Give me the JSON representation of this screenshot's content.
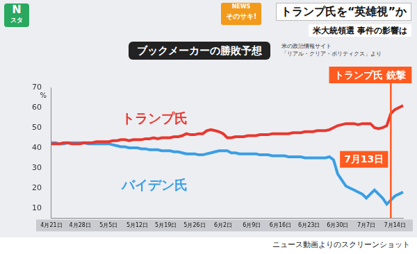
{
  "header": {
    "logo": [
      "N",
      "スタ"
    ],
    "program": [
      "NEWS",
      "そのサキ!"
    ],
    "headline": "トランプ氏を“英雄視”か",
    "subheadline": "米大統領選 事件の影響は"
  },
  "source": [
    "米の政治情報サイト",
    "「リアル・クリア・ポリティクス」より"
  ],
  "caption": "ニュース動画よりのスクリーンショット",
  "chart_data": {
    "type": "line",
    "title": "ブックメーカーの勝敗予想",
    "ylabel": "%",
    "categories": [
      "4月21日",
      null,
      null,
      null,
      null,
      null,
      null,
      "4月28日",
      null,
      null,
      null,
      null,
      null,
      null,
      "5月5日",
      null,
      null,
      null,
      null,
      null,
      null,
      "5月12日",
      null,
      null,
      null,
      null,
      null,
      null,
      "5月19日",
      null,
      null,
      null,
      null,
      null,
      null,
      "5月26日",
      null,
      null,
      null,
      null,
      null,
      null,
      "6月2日",
      null,
      null,
      null,
      null,
      null,
      null,
      "6月9日",
      null,
      null,
      null,
      null,
      null,
      null,
      "6月16日",
      null,
      null,
      null,
      null,
      null,
      null,
      "6月23日",
      null,
      null,
      null,
      null,
      null,
      null,
      "6月30日",
      null,
      null,
      null,
      null,
      null,
      null,
      "7月7日",
      null,
      null,
      null,
      null,
      null,
      null,
      "7月14日",
      null,
      null
    ],
    "series": [
      {
        "name": "トランプ氏",
        "color": "#e8382f",
        "values": [
          42,
          42,
          42,
          42.5,
          42.5,
          42,
          42,
          42,
          42.5,
          42.5,
          42.5,
          43,
          43,
          43,
          43,
          43.5,
          43.5,
          44,
          44,
          43.5,
          44,
          44,
          44,
          44.5,
          44.5,
          45,
          44.5,
          45,
          45,
          45,
          45.5,
          45.5,
          46,
          47,
          46.5,
          46.5,
          47,
          47,
          48.5,
          49,
          48.5,
          48,
          47,
          45,
          45,
          45.5,
          45.5,
          45.5,
          46,
          46,
          46,
          46.5,
          46.5,
          46.5,
          47,
          47,
          47,
          47,
          47,
          47.5,
          47.5,
          47.5,
          48,
          48,
          48,
          48.5,
          48.5,
          48.5,
          49,
          50,
          51,
          51.5,
          52,
          52,
          52,
          51.5,
          52,
          52,
          52,
          50,
          49.5,
          50,
          51,
          57,
          59,
          60,
          61
        ]
      },
      {
        "name": "バイデン氏",
        "color": "#3a9ee4",
        "values": [
          42.5,
          42.5,
          42,
          42,
          42.5,
          42.5,
          42.5,
          42.5,
          42.5,
          42,
          42,
          42,
          42,
          42,
          42,
          41.5,
          41,
          40.5,
          40.5,
          40,
          40,
          40,
          39.5,
          39.5,
          39,
          39,
          39,
          38.5,
          38.5,
          38.5,
          38,
          38,
          37.5,
          37,
          37,
          37,
          36.5,
          36.5,
          37,
          37.5,
          38,
          38.5,
          38.5,
          38.5,
          37.5,
          37.5,
          37,
          37,
          37,
          37,
          37,
          36.5,
          36.5,
          36.5,
          36,
          36,
          36,
          36,
          35.5,
          35.5,
          35.5,
          35.5,
          35,
          35,
          35,
          35,
          35,
          35,
          35.5,
          34,
          27,
          24,
          21,
          20,
          19,
          18,
          17,
          15,
          17,
          19,
          17,
          15,
          12,
          14,
          16,
          17,
          18
        ]
      }
    ],
    "annotations": [
      {
        "x": "7月13日",
        "text": "トランプ氏 銃撃",
        "color": "#ff5a1f"
      }
    ],
    "ylim": [
      5,
      70
    ],
    "yticks": [
      10,
      20,
      30,
      40,
      50,
      60,
      70
    ],
    "grid": false
  }
}
